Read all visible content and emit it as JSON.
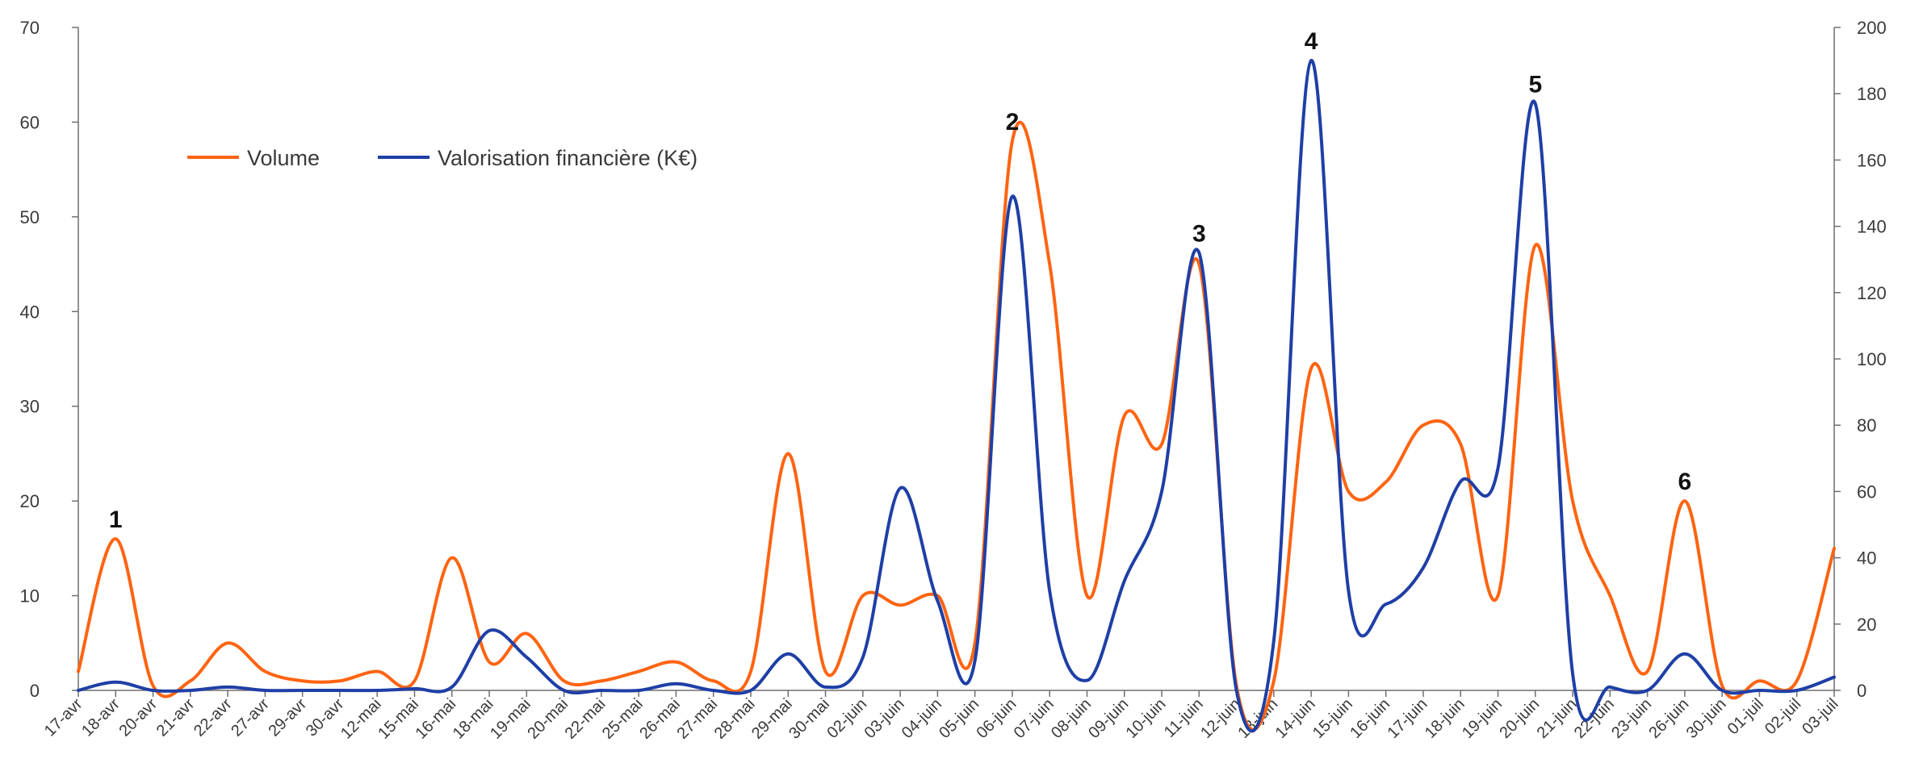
{
  "colors": {
    "volume": "#ff6411",
    "valorisation": "#1f3fa6",
    "axis": "#6f6f6f"
  },
  "chart_data": {
    "type": "line",
    "title": "",
    "xlabel": "",
    "ylabel": "",
    "ylim": [
      0,
      70
    ],
    "y2lim": [
      0,
      200
    ],
    "y_ticks": [
      0,
      10,
      20,
      30,
      40,
      50,
      60,
      70
    ],
    "y2_ticks": [
      0,
      20,
      40,
      60,
      80,
      100,
      120,
      140,
      160,
      180,
      200
    ],
    "grid": false,
    "legend_position": "top-left",
    "categories": [
      "17-avr",
      "18-avr",
      "20-avr",
      "21-avr",
      "22-avr",
      "27-avr",
      "29-avr",
      "30-avr",
      "12-mai",
      "15-mai",
      "16-mai",
      "18-mai",
      "19-mai",
      "20-mai",
      "22-mai",
      "25-mai",
      "26-mai",
      "27-mai",
      "28-mai",
      "29-mai",
      "30-mai",
      "02-juin",
      "03-juin",
      "04-juin",
      "05-juin",
      "06-juin",
      "07-juin",
      "08-juin",
      "09-juin",
      "10-juin",
      "11-juin",
      "12-juin",
      "13-juin",
      "14-juin",
      "15-juin",
      "16-juin",
      "17-juin",
      "18-juin",
      "19-juin",
      "20-juin",
      "21-juin",
      "22-juin",
      "23-juin",
      "26-juin",
      "30-juin",
      "01-juil",
      "02-juil",
      "03-juil"
    ],
    "series": [
      {
        "name": "Volume",
        "axis": "left",
        "values": [
          2,
          16,
          0.5,
          1,
          5,
          2,
          1,
          1,
          2,
          1,
          14,
          3,
          6,
          1,
          1,
          2,
          3,
          1,
          2,
          25,
          2,
          10,
          9,
          10,
          5,
          58,
          45,
          10,
          29,
          26,
          45,
          0.5,
          1,
          34,
          21,
          22,
          28,
          26,
          10,
          47,
          20,
          10,
          2,
          20,
          0.5,
          1,
          1,
          15
        ]
      },
      {
        "name": "Valorisation financière (K€)",
        "axis": "right",
        "values": [
          0,
          2.5,
          0,
          0,
          1,
          0,
          0,
          0,
          0,
          0.5,
          1,
          18,
          10,
          0,
          0,
          0,
          2,
          0,
          0,
          11,
          1,
          10,
          61,
          27,
          9,
          149,
          30,
          3,
          33,
          60,
          132,
          0,
          15,
          190,
          30,
          26,
          37,
          63,
          67,
          177,
          5,
          1,
          0,
          11,
          0,
          0,
          0,
          4
        ]
      }
    ],
    "annotations": [
      {
        "label": "1",
        "category": "18-avr"
      },
      {
        "label": "2",
        "category": "06-juin"
      },
      {
        "label": "3",
        "category": "11-juin"
      },
      {
        "label": "4",
        "category": "14-juin"
      },
      {
        "label": "5",
        "category": "20-juin"
      },
      {
        "label": "6",
        "category": "26-juin"
      }
    ]
  }
}
